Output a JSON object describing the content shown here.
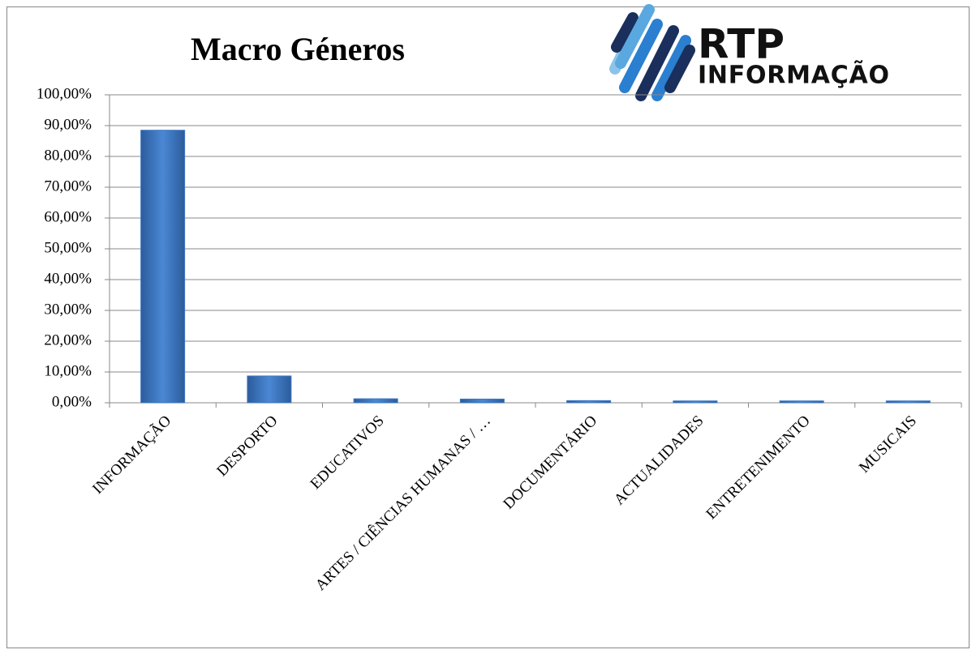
{
  "chart_data": {
    "type": "bar",
    "title": "Macro Géneros",
    "logo": {
      "line1": "RTP",
      "line2": "INFORMAÇÃO"
    },
    "categories": [
      "INFORMAÇÃO",
      "DESPORTO",
      "EDUCATIVOS",
      "ARTES / CIÊNCIAS HUMANAS / …",
      "DOCUMENTÁRIO",
      "ACTUALIDADES",
      "ENTRETENIMENTO",
      "MUSICAIS"
    ],
    "values": [
      88.5,
      8.7,
      1.3,
      1.2,
      0.7,
      0.6,
      0.6,
      0.6
    ],
    "color": "#3f78c0",
    "ylim": [
      0,
      100
    ],
    "yticks": [
      {
        "value": 0,
        "label": "0,00%"
      },
      {
        "value": 10,
        "label": "10,00%"
      },
      {
        "value": 20,
        "label": "20,00%"
      },
      {
        "value": 30,
        "label": "30,00%"
      },
      {
        "value": 40,
        "label": "40,00%"
      },
      {
        "value": 50,
        "label": "50,00%"
      },
      {
        "value": 60,
        "label": "60,00%"
      },
      {
        "value": 70,
        "label": "70,00%"
      },
      {
        "value": 80,
        "label": "80,00%"
      },
      {
        "value": 90,
        "label": "90,00%"
      },
      {
        "value": 100,
        "label": "100,00%"
      }
    ],
    "grid": true
  }
}
